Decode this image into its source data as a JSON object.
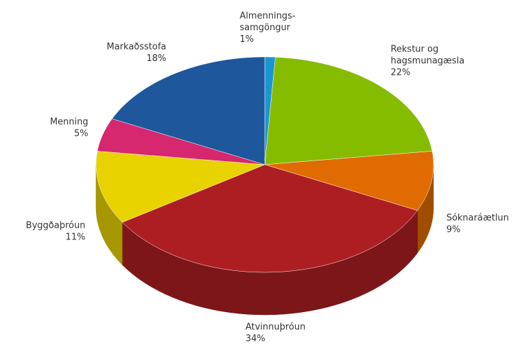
{
  "chart_data": {
    "type": "pie3d",
    "categories": [
      "Almennings-samgöngur",
      "Rekstur og hagsmunagæsla",
      "Sóknaráætlun",
      "Atvinnuþróun",
      "Byggðaþróun",
      "Menning",
      "Markaðsstofa"
    ],
    "values": [
      1,
      22,
      9,
      34,
      11,
      5,
      18
    ],
    "value_labels": [
      "1%",
      "22%",
      "9%",
      "34%",
      "11%",
      "5%",
      "18%"
    ],
    "colors": [
      "#1a96d4",
      "#86bc00",
      "#e06b00",
      "#ad1e22",
      "#e8d200",
      "#d6286e",
      "#1e579c"
    ]
  }
}
